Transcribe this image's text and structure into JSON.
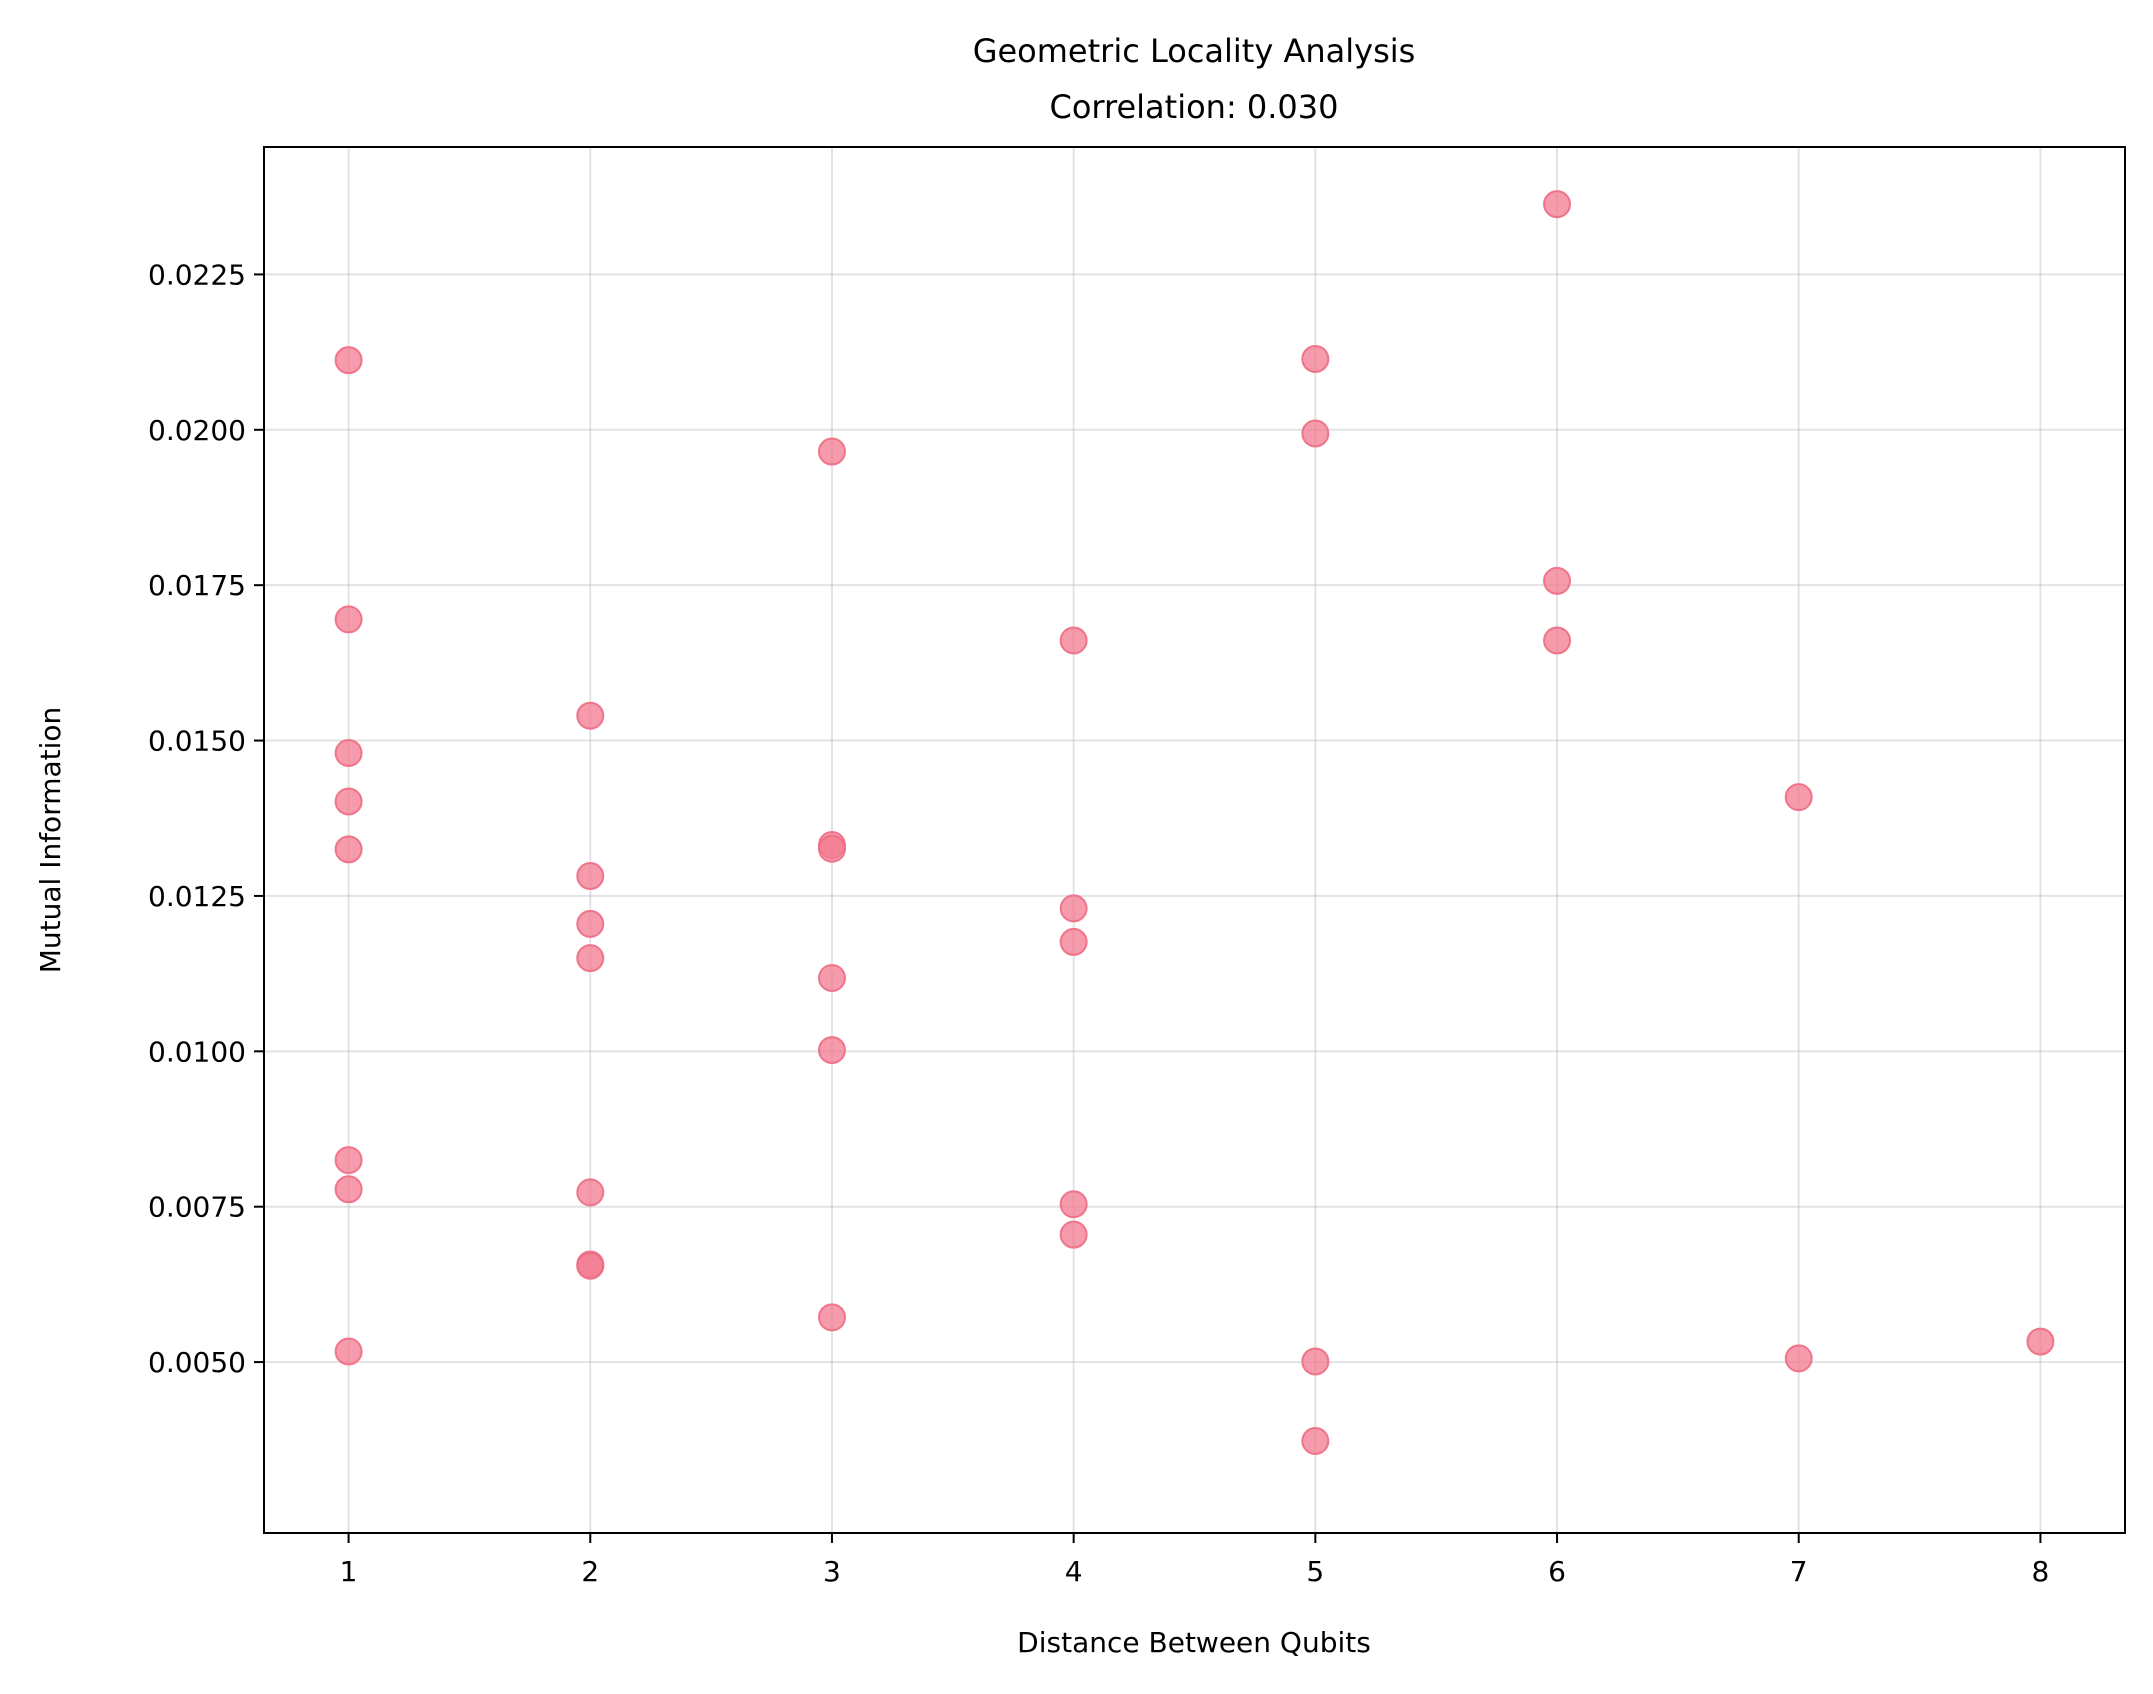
{
  "chart_data": {
    "type": "scatter",
    "title": "Geometric Locality Analysis",
    "subtitle": "Correlation: 0.030",
    "xlabel": "Distance Between Qubits",
    "ylabel": "Mutual Information",
    "xlim": [
      0.65,
      8.35
    ],
    "ylim": [
      0.00225,
      0.02455
    ],
    "x_ticks": [
      1,
      2,
      3,
      4,
      5,
      6,
      7,
      8
    ],
    "x_tick_labels": [
      "1",
      "2",
      "3",
      "4",
      "5",
      "6",
      "7",
      "8"
    ],
    "y_ticks": [
      0.005,
      0.0075,
      0.01,
      0.0125,
      0.015,
      0.0175,
      0.02,
      0.0225
    ],
    "y_tick_labels": [
      "0.0050",
      "0.0075",
      "0.0100",
      "0.0125",
      "0.0150",
      "0.0175",
      "0.0200",
      "0.0225"
    ],
    "grid": true,
    "point_color": "#f27a8f",
    "points": [
      {
        "x": 1,
        "y": 0.02112
      },
      {
        "x": 1,
        "y": 0.01695
      },
      {
        "x": 1,
        "y": 0.0148
      },
      {
        "x": 1,
        "y": 0.01402
      },
      {
        "x": 1,
        "y": 0.01325
      },
      {
        "x": 1,
        "y": 0.00825
      },
      {
        "x": 1,
        "y": 0.00778
      },
      {
        "x": 1,
        "y": 0.00517
      },
      {
        "x": 2,
        "y": 0.0154
      },
      {
        "x": 2,
        "y": 0.01282
      },
      {
        "x": 2,
        "y": 0.01205
      },
      {
        "x": 2,
        "y": 0.0115
      },
      {
        "x": 2,
        "y": 0.00773
      },
      {
        "x": 2,
        "y": 0.00657
      },
      {
        "x": 2,
        "y": 0.00655
      },
      {
        "x": 3,
        "y": 0.01965
      },
      {
        "x": 3,
        "y": 0.01332
      },
      {
        "x": 3,
        "y": 0.01326
      },
      {
        "x": 3,
        "y": 0.01118
      },
      {
        "x": 3,
        "y": 0.01002
      },
      {
        "x": 3,
        "y": 0.00572
      },
      {
        "x": 4,
        "y": 0.01661
      },
      {
        "x": 4,
        "y": 0.0123
      },
      {
        "x": 4,
        "y": 0.01176
      },
      {
        "x": 4,
        "y": 0.00754
      },
      {
        "x": 4,
        "y": 0.00705
      },
      {
        "x": 5,
        "y": 0.02114
      },
      {
        "x": 5,
        "y": 0.01994
      },
      {
        "x": 5,
        "y": 0.00501
      },
      {
        "x": 5,
        "y": 0.00373
      },
      {
        "x": 6,
        "y": 0.02363
      },
      {
        "x": 6,
        "y": 0.01757
      },
      {
        "x": 6,
        "y": 0.01661
      },
      {
        "x": 7,
        "y": 0.01409
      },
      {
        "x": 7,
        "y": 0.00506
      },
      {
        "x": 8,
        "y": 0.00533
      }
    ]
  }
}
